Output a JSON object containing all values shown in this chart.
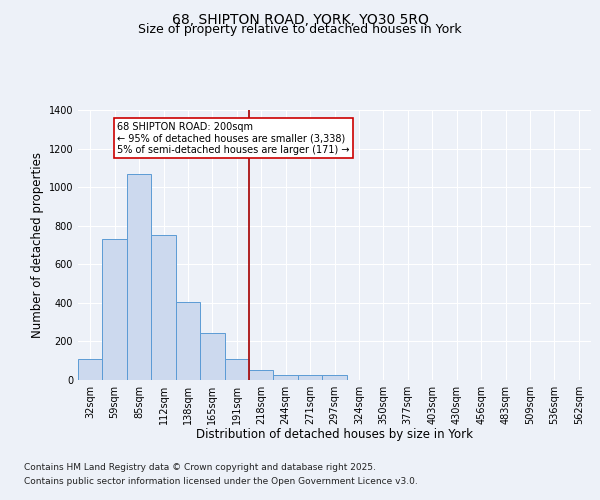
{
  "title_line1": "68, SHIPTON ROAD, YORK, YO30 5RQ",
  "title_line2": "Size of property relative to detached houses in York",
  "xlabel": "Distribution of detached houses by size in York",
  "ylabel": "Number of detached properties",
  "categories": [
    "32sqm",
    "59sqm",
    "85sqm",
    "112sqm",
    "138sqm",
    "165sqm",
    "191sqm",
    "218sqm",
    "244sqm",
    "271sqm",
    "297sqm",
    "324sqm",
    "350sqm",
    "377sqm",
    "403sqm",
    "430sqm",
    "456sqm",
    "483sqm",
    "509sqm",
    "536sqm",
    "562sqm"
  ],
  "values": [
    110,
    730,
    1070,
    750,
    405,
    245,
    110,
    50,
    25,
    25,
    25,
    0,
    0,
    0,
    0,
    0,
    0,
    0,
    0,
    0,
    0
  ],
  "bar_color": "#ccd9ee",
  "bar_edge_color": "#5b9bd5",
  "vline_x_index": 7,
  "vline_color": "#aa1111",
  "annotation_text": "68 SHIPTON ROAD: 200sqm\n← 95% of detached houses are smaller (3,338)\n5% of semi-detached houses are larger (171) →",
  "annotation_box_facecolor": "#ffffff",
  "annotation_box_edgecolor": "#cc0000",
  "ylim": [
    0,
    1400
  ],
  "yticks": [
    0,
    200,
    400,
    600,
    800,
    1000,
    1200,
    1400
  ],
  "bg_color": "#edf1f8",
  "plot_bg_color": "#edf1f8",
  "grid_color": "#ffffff",
  "title_fontsize": 10,
  "subtitle_fontsize": 9,
  "axis_label_fontsize": 8.5,
  "tick_fontsize": 7,
  "annotation_fontsize": 7,
  "footer_fontsize": 6.5,
  "footer_line1": "Contains HM Land Registry data © Crown copyright and database right 2025.",
  "footer_line2": "Contains public sector information licensed under the Open Government Licence v3.0."
}
